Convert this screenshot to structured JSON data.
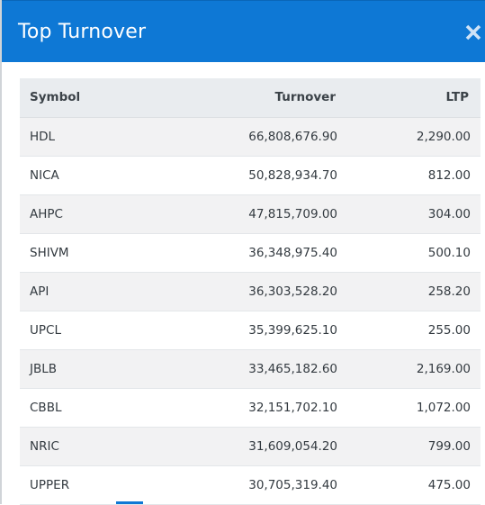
{
  "modal": {
    "title": "Top Turnover",
    "close_icon": "close-icon"
  },
  "colors": {
    "header_bg": "#0e78d5",
    "table_header_bg": "#e9ecef",
    "row_stripe_bg": "#f2f2f3"
  },
  "table": {
    "columns": [
      "Symbol",
      "Turnover",
      "LTP"
    ],
    "rows": [
      {
        "symbol": "HDL",
        "turnover": "66,808,676.90",
        "ltp": "2,290.00"
      },
      {
        "symbol": "NICA",
        "turnover": "50,828,934.70",
        "ltp": "812.00"
      },
      {
        "symbol": "AHPC",
        "turnover": "47,815,709.00",
        "ltp": "304.00"
      },
      {
        "symbol": "SHIVM",
        "turnover": "36,348,975.40",
        "ltp": "500.10"
      },
      {
        "symbol": "API",
        "turnover": "36,303,528.20",
        "ltp": "258.20"
      },
      {
        "symbol": "UPCL",
        "turnover": "35,399,625.10",
        "ltp": "255.00"
      },
      {
        "symbol": "JBLB",
        "turnover": "33,465,182.60",
        "ltp": "2,169.00"
      },
      {
        "symbol": "CBBL",
        "turnover": "32,151,702.10",
        "ltp": "1,072.00"
      },
      {
        "symbol": "NRIC",
        "turnover": "31,609,054.20",
        "ltp": "799.00"
      },
      {
        "symbol": "UPPER",
        "turnover": "30,705,319.40",
        "ltp": "475.00"
      }
    ]
  }
}
